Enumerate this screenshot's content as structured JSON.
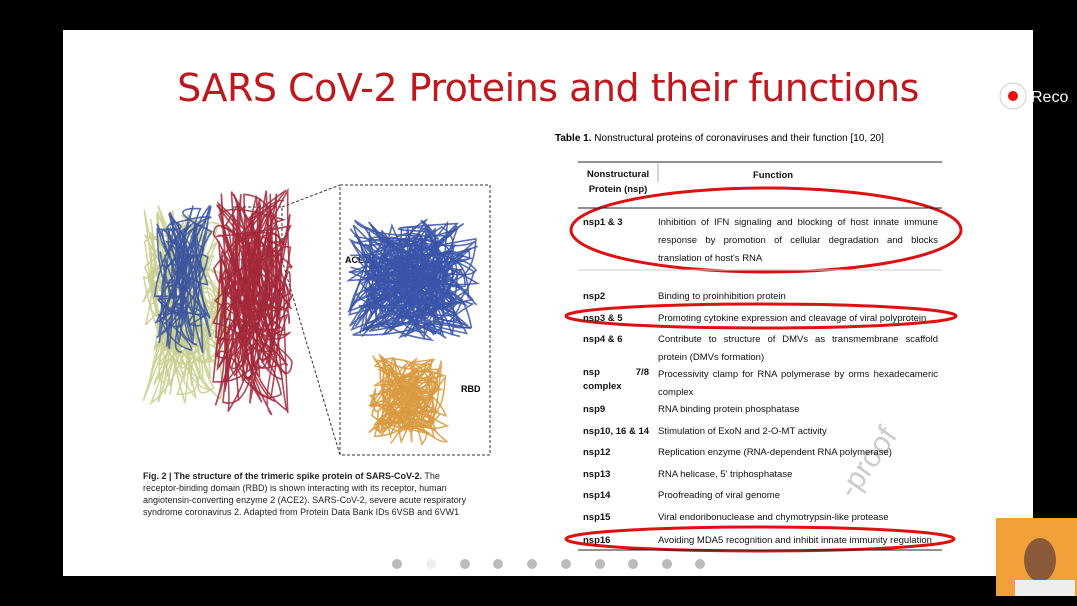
{
  "slide": {
    "title": "SARS CoV-2 Proteins and their functions",
    "figure": {
      "label_ace2": "ACE2",
      "label_rbd": "RBD",
      "caption_bold": "Fig. 2 | The structure of the trimeric spike protein of SARS-CoV-2.",
      "caption": "The receptor-binding domain (RBD) is shown interacting with its receptor, human angiotensin-converting enzyme 2 (ACE2). SARS-CoV-2, severe acute respiratory syndrome coronavirus 2. Adapted from Protein Data Bank IDs 6VSB and 6VW1"
    },
    "table": {
      "caption_bold": "Table 1.",
      "caption": "Nonstructural proteins of coronaviruses and their function [10, 20]",
      "header": [
        "Nonstructural Protein (nsp)",
        "Function"
      ],
      "rows": [
        [
          "nsp1 & 3",
          "Inhibition of IFN signaling and blocking of host innate immune response by promotion of cellular degradation and blocks translation of host's RNA"
        ],
        [
          "nsp2",
          "Binding to proinhibition protein"
        ],
        [
          "nsp3 & 5",
          "Promoting cytokine expression and cleavage of viral polyprotein"
        ],
        [
          "nsp4 & 6",
          "Contribute to structure of DMVs as transmembrane scaffold protein (DMVs formation)"
        ],
        [
          "nsp 7/8 complex",
          "Processivity clamp for RNA polymerase by orms hexadecameric complex"
        ],
        [
          "nsp9",
          "RNA binding protein phosphatase"
        ],
        [
          "nsp10, 16 & 14",
          "Stimulation of ExoN and 2-O-MT activity"
        ],
        [
          "nsp12",
          "Replication enzyme (RNA-dependent RNA polymerase)"
        ],
        [
          "nsp13",
          "RNA helicase, 5' triphosphatase"
        ],
        [
          "nsp14",
          "Proofreading of viral genome"
        ],
        [
          "nsp15",
          "Viral endoribonuclease and chymotrypsin-like protease"
        ],
        [
          "nsp16",
          "Avoiding MDA5 recognition and inhibit innate immunity regulation"
        ]
      ]
    },
    "watermark": "-proof"
  },
  "overlay": {
    "record": "Reco"
  }
}
